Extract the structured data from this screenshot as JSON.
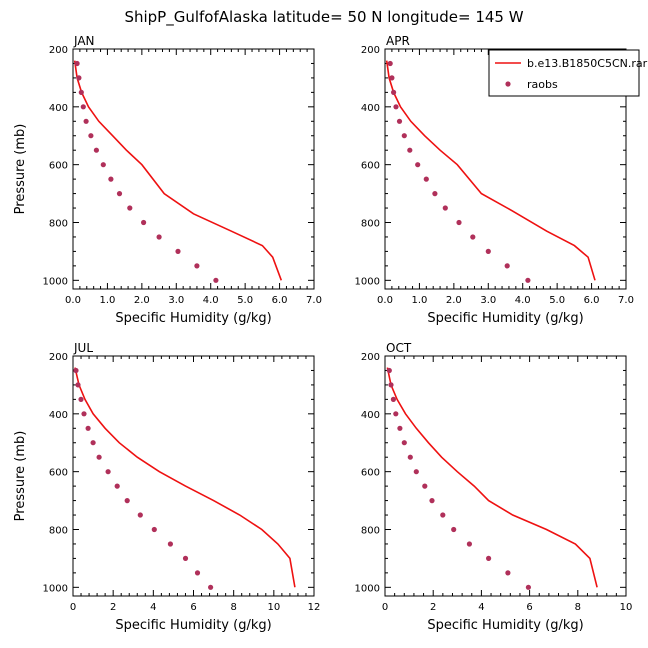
{
  "title": "ShipP_GulfofAlaska  latitude= 50 N longitude= 145 W",
  "colors": {
    "model": "#ee1111",
    "obs": "#b0305a"
  },
  "chart_data": [
    {
      "type": "line",
      "panel": "JAN",
      "xlabel": "Specific Humidity (g/kg)",
      "ylabel": "Pressure (mb)",
      "xlim": [
        0,
        7
      ],
      "ylim": [
        200,
        1030
      ],
      "y_inverted": true,
      "xticks": [
        "0.0",
        "1.0",
        "2.0",
        "3.0",
        "4.0",
        "5.0",
        "6.0",
        "7.0"
      ],
      "yticks": [
        "200",
        "400",
        "600",
        "800",
        "1000"
      ],
      "series": [
        {
          "name": "b.e13.B1850C5CN.rar",
          "style": "line",
          "x": [
            0.05,
            0.12,
            0.25,
            0.45,
            0.75,
            1.15,
            1.55,
            2.0,
            2.65,
            3.5,
            4.6,
            5.5,
            5.8,
            6.05
          ],
          "y": [
            240,
            300,
            350,
            400,
            450,
            500,
            550,
            600,
            700,
            770,
            830,
            880,
            920,
            1000
          ]
        },
        {
          "name": "raobs",
          "style": "marker",
          "x": [
            0.12,
            0.17,
            0.24,
            0.3,
            0.38,
            0.52,
            0.68,
            0.88,
            1.1,
            1.35,
            1.65,
            2.05,
            2.5,
            3.05,
            3.6,
            4.15
          ],
          "y": [
            250,
            300,
            350,
            400,
            450,
            500,
            550,
            600,
            650,
            700,
            750,
            800,
            850,
            900,
            950,
            1000
          ]
        }
      ]
    },
    {
      "type": "line",
      "panel": "APR",
      "xlabel": "Specific Humidity (g/kg)",
      "ylabel": "",
      "xlim": [
        0,
        7
      ],
      "ylim": [
        200,
        1030
      ],
      "y_inverted": true,
      "xticks": [
        "0.0",
        "1.0",
        "2.0",
        "3.0",
        "4.0",
        "5.0",
        "6.0",
        "7.0"
      ],
      "yticks": [
        "200",
        "400",
        "600",
        "800",
        "1000"
      ],
      "legend": "top-right",
      "series": [
        {
          "name": "b.e13.B1850C5CN.rar",
          "style": "line",
          "x": [
            0.05,
            0.12,
            0.25,
            0.45,
            0.75,
            1.15,
            1.6,
            2.1,
            2.8,
            3.7,
            4.7,
            5.5,
            5.9,
            6.1
          ],
          "y": [
            240,
            300,
            350,
            400,
            450,
            500,
            550,
            600,
            700,
            760,
            830,
            880,
            920,
            1000
          ]
        },
        {
          "name": "raobs",
          "style": "marker",
          "x": [
            0.15,
            0.2,
            0.25,
            0.32,
            0.42,
            0.56,
            0.72,
            0.95,
            1.2,
            1.45,
            1.75,
            2.15,
            2.55,
            3.0,
            3.55,
            4.15
          ],
          "y": [
            250,
            300,
            350,
            400,
            450,
            500,
            550,
            600,
            650,
            700,
            750,
            800,
            850,
            900,
            950,
            1000
          ]
        }
      ]
    },
    {
      "type": "line",
      "panel": "JUL",
      "xlabel": "Specific Humidity (g/kg)",
      "ylabel": "Pressure (mb)",
      "xlim": [
        0,
        12
      ],
      "ylim": [
        200,
        1030
      ],
      "y_inverted": true,
      "xticks": [
        "0",
        "2",
        "4",
        "6",
        "8",
        "10",
        "12"
      ],
      "yticks": [
        "200",
        "400",
        "600",
        "800",
        "1000"
      ],
      "series": [
        {
          "name": "b.e13.B1850C5CN.rar",
          "style": "line",
          "x": [
            0.1,
            0.3,
            0.6,
            1.0,
            1.6,
            2.3,
            3.2,
            4.3,
            5.6,
            7.0,
            8.3,
            9.4,
            10.2,
            10.8,
            11.05
          ],
          "y": [
            240,
            300,
            350,
            400,
            450,
            500,
            550,
            600,
            650,
            700,
            750,
            800,
            850,
            900,
            1000
          ]
        },
        {
          "name": "raobs",
          "style": "marker",
          "x": [
            0.15,
            0.25,
            0.4,
            0.55,
            0.75,
            1.0,
            1.3,
            1.75,
            2.2,
            2.7,
            3.35,
            4.05,
            4.85,
            5.6,
            6.2,
            6.85
          ],
          "y": [
            250,
            300,
            350,
            400,
            450,
            500,
            550,
            600,
            650,
            700,
            750,
            800,
            850,
            900,
            950,
            1000
          ]
        }
      ]
    },
    {
      "type": "line",
      "panel": "OCT",
      "xlabel": "Specific Humidity (g/kg)",
      "ylabel": "",
      "xlim": [
        0,
        10
      ],
      "ylim": [
        200,
        1030
      ],
      "y_inverted": true,
      "xticks": [
        "0",
        "2",
        "4",
        "6",
        "8",
        "10"
      ],
      "yticks": [
        "200",
        "400",
        "600",
        "800",
        "1000"
      ],
      "series": [
        {
          "name": "b.e13.B1850C5CN.rar",
          "style": "line",
          "x": [
            0.1,
            0.25,
            0.5,
            0.85,
            1.3,
            1.8,
            2.35,
            3.0,
            3.7,
            4.3,
            5.3,
            6.7,
            7.9,
            8.5,
            8.8
          ],
          "y": [
            240,
            300,
            350,
            400,
            450,
            500,
            550,
            600,
            650,
            700,
            750,
            800,
            850,
            900,
            1000
          ]
        },
        {
          "name": "raobs",
          "style": "marker",
          "x": [
            0.18,
            0.25,
            0.35,
            0.45,
            0.62,
            0.8,
            1.05,
            1.3,
            1.65,
            1.95,
            2.4,
            2.85,
            3.5,
            4.3,
            5.1,
            5.95
          ],
          "y": [
            250,
            300,
            350,
            400,
            450,
            500,
            550,
            600,
            650,
            700,
            750,
            800,
            850,
            900,
            950,
            1000
          ]
        }
      ]
    }
  ]
}
